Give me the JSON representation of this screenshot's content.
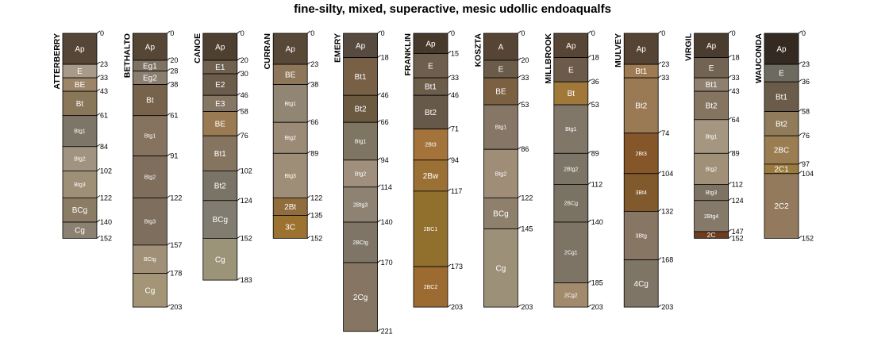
{
  "chart_data": {
    "type": "soil-profile-sketch",
    "title": "fine-silty, mixed, superactive, mesic udollic endoaqualfs",
    "depth_unit": "cm",
    "depth_range": [
      0,
      221
    ],
    "profiles": [
      {
        "name": "ATTERBERRY",
        "depths": [
          0,
          23,
          33,
          43,
          61,
          84,
          102,
          122,
          140,
          152
        ],
        "horizons": [
          {
            "name": "Ap",
            "color": "#554638"
          },
          {
            "name": "E",
            "color": "#a89a88"
          },
          {
            "name": "BE",
            "color": "#9c8468"
          },
          {
            "name": "Bt",
            "color": "#8a7658"
          },
          {
            "name": "Btg1",
            "color": "#7d7668"
          },
          {
            "name": "Btg2",
            "color": "#a09480"
          },
          {
            "name": "Btg3",
            "color": "#9e8f77"
          },
          {
            "name": "BCg",
            "color": "#8b7c66"
          },
          {
            "name": "Cg",
            "color": "#8a8172"
          }
        ]
      },
      {
        "name": "BETHALTO",
        "depths": [
          0,
          20,
          28,
          38,
          61,
          91,
          122,
          157,
          178,
          203
        ],
        "horizons": [
          {
            "name": "Ap",
            "color": "#564636"
          },
          {
            "name": "Eg1",
            "color": "#7e7262"
          },
          {
            "name": "Eg2",
            "color": "#8a7e6e"
          },
          {
            "name": "Bt",
            "color": "#77634b"
          },
          {
            "name": "Btg1",
            "color": "#85725f"
          },
          {
            "name": "Btg2",
            "color": "#7f6e5c"
          },
          {
            "name": "Btg3",
            "color": "#7e6e5d"
          },
          {
            "name": "BCtg",
            "color": "#9f9077"
          },
          {
            "name": "Cg",
            "color": "#a39576"
          }
        ]
      },
      {
        "name": "CANOE",
        "depths": [
          0,
          20,
          30,
          46,
          58,
          76,
          102,
          124,
          152,
          183
        ],
        "horizons": [
          {
            "name": "Ap",
            "color": "#4e3f30"
          },
          {
            "name": "E1",
            "color": "#6f6050"
          },
          {
            "name": "E2",
            "color": "#6c5c4b"
          },
          {
            "name": "E3",
            "color": "#867664"
          },
          {
            "name": "BE",
            "color": "#9a7a52"
          },
          {
            "name": "Bt1",
            "color": "#857560"
          },
          {
            "name": "Bt2",
            "color": "#7a7466"
          },
          {
            "name": "BCg",
            "color": "#817c70"
          },
          {
            "name": "Cg",
            "color": "#9c9478"
          }
        ]
      },
      {
        "name": "CURRAN",
        "depths": [
          0,
          23,
          38,
          66,
          89,
          122,
          135,
          152
        ],
        "horizons": [
          {
            "name": "Ap",
            "color": "#574838"
          },
          {
            "name": "BE",
            "color": "#8e765a"
          },
          {
            "name": "Btg1",
            "color": "#918674"
          },
          {
            "name": "Btg2",
            "color": "#9b8b76"
          },
          {
            "name": "Btg3",
            "color": "#9e8e77"
          },
          {
            "name": "2Bt",
            "color": "#916c3c"
          },
          {
            "name": "3C",
            "color": "#9c7230"
          }
        ]
      },
      {
        "name": "EMERY",
        "depths": [
          0,
          18,
          46,
          66,
          94,
          114,
          140,
          170,
          221
        ],
        "horizons": [
          {
            "name": "Ap",
            "color": "#574b3f"
          },
          {
            "name": "Bt1",
            "color": "#776045"
          },
          {
            "name": "Bt2",
            "color": "#6c5a40"
          },
          {
            "name": "Btg1",
            "color": "#7f7563"
          },
          {
            "name": "Btg2",
            "color": "#9f8f7c"
          },
          {
            "name": "2Btg3",
            "color": "#8e8373"
          },
          {
            "name": "2BCtg",
            "color": "#7f7567"
          },
          {
            "name": "2Cg",
            "color": "#857562"
          }
        ]
      },
      {
        "name": "FRANKLIN",
        "depths": [
          0,
          15,
          33,
          46,
          71,
          94,
          117,
          173,
          203
        ],
        "horizons": [
          {
            "name": "Ap",
            "color": "#473a2d"
          },
          {
            "name": "E",
            "color": "#6d5e4e"
          },
          {
            "name": "Bt1",
            "color": "#6c5c4a"
          },
          {
            "name": "Bt2",
            "color": "#66594a"
          },
          {
            "name": "2Bt3",
            "color": "#a3733a"
          },
          {
            "name": "2Bw",
            "color": "#9b7034"
          },
          {
            "name": "2BC1",
            "color": "#91702e"
          },
          {
            "name": "2BC2",
            "color": "#9c6b31"
          }
        ]
      },
      {
        "name": "KOSZTA",
        "depths": [
          0,
          20,
          33,
          53,
          86,
          122,
          145,
          203
        ],
        "horizons": [
          {
            "name": "A",
            "color": "#564534"
          },
          {
            "name": "E",
            "color": "#6b5b4a"
          },
          {
            "name": "BE",
            "color": "#7b6142"
          },
          {
            "name": "Btg1",
            "color": "#857665"
          },
          {
            "name": "Btg2",
            "color": "#9f8d78"
          },
          {
            "name": "BCg",
            "color": "#8e806c"
          },
          {
            "name": "Cg",
            "color": "#9d9079"
          }
        ]
      },
      {
        "name": "MILLBROOK",
        "depths": [
          0,
          18,
          36,
          53,
          89,
          112,
          140,
          185,
          203
        ],
        "horizons": [
          {
            "name": "Ap",
            "color": "#574535"
          },
          {
            "name": "E",
            "color": "#6c5b4a"
          },
          {
            "name": "Bt",
            "color": "#a0783a"
          },
          {
            "name": "Btg1",
            "color": "#817769"
          },
          {
            "name": "2Btg2",
            "color": "#7c7466"
          },
          {
            "name": "2BCg",
            "color": "#7a7263"
          },
          {
            "name": "2Cg1",
            "color": "#7e7466"
          },
          {
            "name": "2Cg2",
            "color": "#a28b6c"
          }
        ]
      },
      {
        "name": "MULVEY",
        "depths": [
          0,
          23,
          33,
          74,
          104,
          132,
          168,
          203
        ],
        "horizons": [
          {
            "name": "Ap",
            "color": "#554434"
          },
          {
            "name": "Bt1",
            "color": "#9e7b52"
          },
          {
            "name": "Bt2",
            "color": "#997a55"
          },
          {
            "name": "2Bt3",
            "color": "#85562a"
          },
          {
            "name": "3Bt4",
            "color": "#805a2c"
          },
          {
            "name": "3Btg",
            "color": "#877664"
          },
          {
            "name": "4Cg",
            "color": "#7f7566"
          }
        ]
      },
      {
        "name": "VIRGIL",
        "depths": [
          0,
          18,
          33,
          43,
          64,
          89,
          112,
          124,
          147,
          152
        ],
        "horizons": [
          {
            "name": "Ap",
            "color": "#4a3c2e"
          },
          {
            "name": "E",
            "color": "#736353"
          },
          {
            "name": "Bt1",
            "color": "#8e7f6e"
          },
          {
            "name": "Bt2",
            "color": "#857560"
          },
          {
            "name": "Btg1",
            "color": "#a59681"
          },
          {
            "name": "Btg2",
            "color": "#a09078"
          },
          {
            "name": "Btg3",
            "color": "#7e7362"
          },
          {
            "name": "2Btg4",
            "color": "#857a6a"
          },
          {
            "name": "2C",
            "color": "#6b3c1e"
          }
        ]
      },
      {
        "name": "WAUCONDA",
        "depths": [
          0,
          23,
          36,
          58,
          76,
          97,
          104,
          152
        ],
        "horizons": [
          {
            "name": "Ap",
            "color": "#342a22"
          },
          {
            "name": "E",
            "color": "#6d6a60"
          },
          {
            "name": "Bt1",
            "color": "#6b5b49"
          },
          {
            "name": "Bt2",
            "color": "#907b5a"
          },
          {
            "name": "2BC",
            "color": "#9a7e52"
          },
          {
            "name": "2C1",
            "color": "#9a7a3e"
          },
          {
            "name": "2C2",
            "color": "#937a5c"
          }
        ]
      }
    ]
  }
}
